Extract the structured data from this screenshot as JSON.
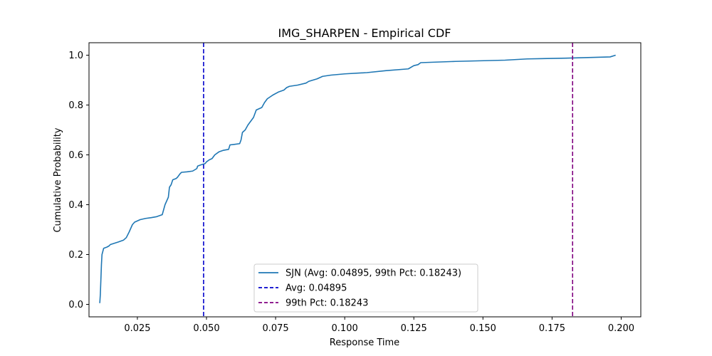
{
  "chart_data": {
    "type": "line",
    "title": "IMG_SHARPEN - Empirical CDF",
    "xlabel": "Response Time",
    "ylabel": "Cumulative Probability",
    "xlim": [
      0.0075,
      0.2071
    ],
    "ylim": [
      -0.05,
      1.05
    ],
    "x_ticks": [
      "0.025",
      "0.050",
      "0.075",
      "0.100",
      "0.125",
      "0.150",
      "0.175",
      "0.200"
    ],
    "y_ticks": [
      "0.0",
      "0.2",
      "0.4",
      "0.6",
      "0.8",
      "1.0"
    ],
    "grid": false,
    "legend_position": "lower-center",
    "series": [
      {
        "name": "SJN (Avg: 0.04895, 99th Pct: 0.18243)",
        "color": "#1f77b4",
        "style": "solid",
        "points": [
          [
            0.0114,
            0.005
          ],
          [
            0.0116,
            0.04
          ],
          [
            0.0118,
            0.1
          ],
          [
            0.012,
            0.16
          ],
          [
            0.0122,
            0.2
          ],
          [
            0.0128,
            0.225
          ],
          [
            0.014,
            0.23
          ],
          [
            0.0148,
            0.235
          ],
          [
            0.0152,
            0.24
          ],
          [
            0.018,
            0.25
          ],
          [
            0.02,
            0.258
          ],
          [
            0.021,
            0.268
          ],
          [
            0.022,
            0.29
          ],
          [
            0.0228,
            0.31
          ],
          [
            0.0232,
            0.32
          ],
          [
            0.024,
            0.33
          ],
          [
            0.025,
            0.335
          ],
          [
            0.026,
            0.34
          ],
          [
            0.028,
            0.345
          ],
          [
            0.03,
            0.348
          ],
          [
            0.032,
            0.352
          ],
          [
            0.034,
            0.36
          ],
          [
            0.0345,
            0.38
          ],
          [
            0.035,
            0.4
          ],
          [
            0.0358,
            0.42
          ],
          [
            0.0362,
            0.43
          ],
          [
            0.0366,
            0.47
          ],
          [
            0.0372,
            0.48
          ],
          [
            0.0378,
            0.5
          ],
          [
            0.039,
            0.505
          ],
          [
            0.0395,
            0.51
          ],
          [
            0.0405,
            0.525
          ],
          [
            0.041,
            0.53
          ],
          [
            0.043,
            0.532
          ],
          [
            0.045,
            0.535
          ],
          [
            0.0465,
            0.545
          ],
          [
            0.0468,
            0.555
          ],
          [
            0.048,
            0.56
          ],
          [
            0.0495,
            0.565
          ],
          [
            0.05,
            0.572
          ],
          [
            0.051,
            0.58
          ],
          [
            0.052,
            0.585
          ],
          [
            0.053,
            0.6
          ],
          [
            0.0545,
            0.612
          ],
          [
            0.056,
            0.618
          ],
          [
            0.058,
            0.622
          ],
          [
            0.0585,
            0.64
          ],
          [
            0.06,
            0.642
          ],
          [
            0.062,
            0.645
          ],
          [
            0.0625,
            0.66
          ],
          [
            0.063,
            0.69
          ],
          [
            0.064,
            0.7
          ],
          [
            0.065,
            0.72
          ],
          [
            0.066,
            0.735
          ],
          [
            0.067,
            0.75
          ],
          [
            0.068,
            0.78
          ],
          [
            0.069,
            0.785
          ],
          [
            0.07,
            0.79
          ],
          [
            0.071,
            0.81
          ],
          [
            0.072,
            0.825
          ],
          [
            0.074,
            0.84
          ],
          [
            0.076,
            0.852
          ],
          [
            0.078,
            0.86
          ],
          [
            0.079,
            0.87
          ],
          [
            0.08,
            0.875
          ],
          [
            0.083,
            0.88
          ],
          [
            0.086,
            0.888
          ],
          [
            0.087,
            0.895
          ],
          [
            0.09,
            0.905
          ],
          [
            0.092,
            0.915
          ],
          [
            0.095,
            0.92
          ],
          [
            0.1,
            0.925
          ],
          [
            0.108,
            0.93
          ],
          [
            0.115,
            0.938
          ],
          [
            0.123,
            0.945
          ],
          [
            0.125,
            0.958
          ],
          [
            0.1265,
            0.962
          ],
          [
            0.1275,
            0.97
          ],
          [
            0.14,
            0.975
          ],
          [
            0.158,
            0.98
          ],
          [
            0.166,
            0.985
          ],
          [
            0.18,
            0.988
          ],
          [
            0.196,
            0.993
          ],
          [
            0.198,
            1.0
          ]
        ]
      }
    ],
    "vlines": [
      {
        "name": "Avg: 0.04895",
        "x": 0.04895,
        "color": "#0000cc",
        "style": "dashed"
      },
      {
        "name": "99th Pct: 0.18243",
        "x": 0.18243,
        "color": "#800080",
        "style": "dashed"
      }
    ]
  }
}
